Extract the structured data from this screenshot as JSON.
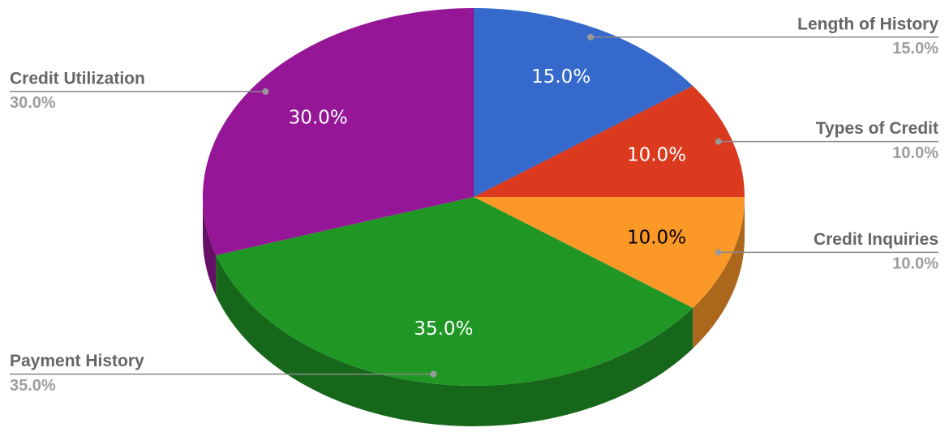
{
  "chart_data": {
    "type": "pie",
    "categories": [
      "Length of History",
      "Types of Credit",
      "Credit Inquiries",
      "Payment History",
      "Credit Utilization"
    ],
    "values": [
      15,
      10,
      10,
      35,
      30
    ],
    "value_labels": [
      "15.0%",
      "10.0%",
      "10.0%",
      "35.0%",
      "30.0%"
    ],
    "colors": [
      "#3569cc",
      "#db3a1f",
      "#fb9827",
      "#209725",
      "#951696"
    ]
  }
}
